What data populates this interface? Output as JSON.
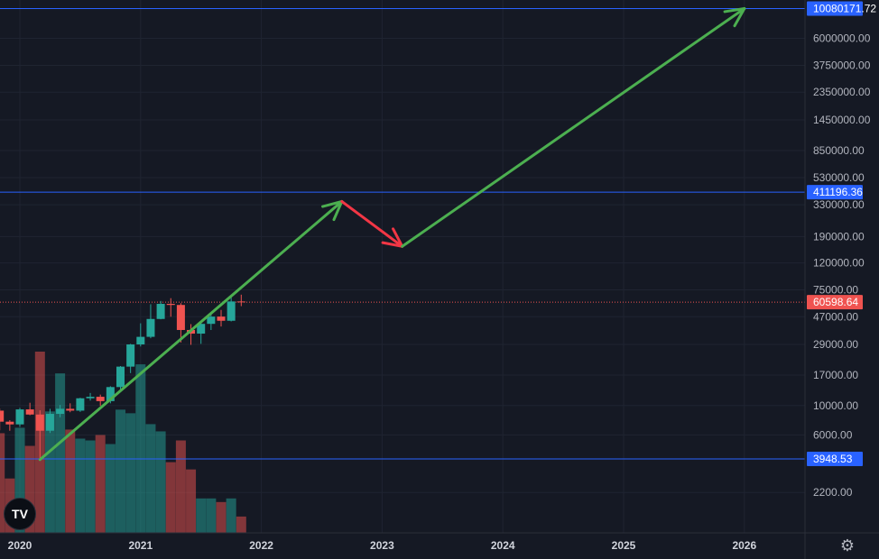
{
  "app": {
    "logo_text": "TV",
    "settings_icon": "gear-icon"
  },
  "colors": {
    "up": "#26a69a",
    "down": "#ef5350",
    "level_line": "#2962ff",
    "arrow_green": "#4caf50",
    "arrow_red": "#f23645",
    "current_price": "#ef5350"
  },
  "chart_data": {
    "type": "candlestick",
    "y_scale": "log",
    "ylim": [
      1600,
      13500000
    ],
    "x_ticks": [
      "2020",
      "2021",
      "2022",
      "2023",
      "2024",
      "2025",
      "2026"
    ],
    "y_ticks": [
      "2200.00",
      "6000.00",
      "10000.00",
      "17000.00",
      "29000.00",
      "47000.00",
      "75000.00",
      "120000.00",
      "190000.00",
      "330000.00",
      "530000.00",
      "850000.00",
      "1450000.00",
      "2350000.00",
      "3750000.00",
      "6000000.00"
    ],
    "levels": [
      {
        "label": "10080171.72",
        "value": 10080171.72
      },
      {
        "label": "411196.36",
        "value": 411196.36
      },
      {
        "label": "3948.53",
        "value": 3948.53
      }
    ],
    "current_price": {
      "label": "60598.64",
      "value": 60598.64
    },
    "candles": [
      {
        "date": "2019-11",
        "open": 9150,
        "high": 9500,
        "low": 6500,
        "close": 7550
      },
      {
        "date": "2019-12",
        "open": 7550,
        "high": 7750,
        "low": 6450,
        "close": 7200
      },
      {
        "date": "2020-01",
        "open": 7200,
        "high": 9600,
        "low": 6900,
        "close": 9350
      },
      {
        "date": "2020-02",
        "open": 9350,
        "high": 10500,
        "low": 8450,
        "close": 8550
      },
      {
        "date": "2020-03",
        "open": 8550,
        "high": 9200,
        "low": 3850,
        "close": 6450
      },
      {
        "date": "2020-04",
        "open": 6450,
        "high": 9450,
        "low": 6200,
        "close": 8650
      },
      {
        "date": "2020-05",
        "open": 8650,
        "high": 10100,
        "low": 8150,
        "close": 9450
      },
      {
        "date": "2020-06",
        "open": 9450,
        "high": 10400,
        "low": 8900,
        "close": 9150
      },
      {
        "date": "2020-07",
        "open": 9150,
        "high": 11450,
        "low": 8950,
        "close": 11350
      },
      {
        "date": "2020-08",
        "open": 11350,
        "high": 12450,
        "low": 10900,
        "close": 11650
      },
      {
        "date": "2020-09",
        "open": 11650,
        "high": 12100,
        "low": 9950,
        "close": 10800
      },
      {
        "date": "2020-10",
        "open": 10800,
        "high": 14000,
        "low": 10400,
        "close": 13800
      },
      {
        "date": "2020-11",
        "open": 13800,
        "high": 19900,
        "low": 13200,
        "close": 19700
      },
      {
        "date": "2020-12",
        "open": 19700,
        "high": 29300,
        "low": 17600,
        "close": 29000
      },
      {
        "date": "2021-01",
        "open": 29000,
        "high": 41900,
        "low": 28000,
        "close": 33100
      },
      {
        "date": "2021-02",
        "open": 33100,
        "high": 58400,
        "low": 32300,
        "close": 45200
      },
      {
        "date": "2021-03",
        "open": 45200,
        "high": 61800,
        "low": 44900,
        "close": 58800
      },
      {
        "date": "2021-04",
        "open": 58800,
        "high": 64900,
        "low": 47000,
        "close": 57700
      },
      {
        "date": "2021-05",
        "open": 57700,
        "high": 59500,
        "low": 30000,
        "close": 37300
      },
      {
        "date": "2021-06",
        "open": 37300,
        "high": 41300,
        "low": 28800,
        "close": 35000
      },
      {
        "date": "2021-07",
        "open": 35000,
        "high": 42400,
        "low": 29300,
        "close": 41500
      },
      {
        "date": "2021-08",
        "open": 41500,
        "high": 50500,
        "low": 37300,
        "close": 47100
      },
      {
        "date": "2021-09",
        "open": 47100,
        "high": 52900,
        "low": 39600,
        "close": 43800
      },
      {
        "date": "2021-10",
        "open": 43800,
        "high": 67000,
        "low": 43300,
        "close": 61300
      },
      {
        "date": "2021-11",
        "open": 61300,
        "high": 69000,
        "low": 56500,
        "close": 60600
      }
    ],
    "volume": [
      {
        "date": "2019-11",
        "value": 0.55,
        "dir": "down"
      },
      {
        "date": "2019-12",
        "value": 0.3,
        "dir": "down"
      },
      {
        "date": "2020-01",
        "value": 0.58,
        "dir": "up"
      },
      {
        "date": "2020-02",
        "value": 0.48,
        "dir": "down"
      },
      {
        "date": "2020-03",
        "value": 1.0,
        "dir": "down"
      },
      {
        "date": "2020-04",
        "value": 0.67,
        "dir": "up"
      },
      {
        "date": "2020-05",
        "value": 0.88,
        "dir": "up"
      },
      {
        "date": "2020-06",
        "value": 0.57,
        "dir": "down"
      },
      {
        "date": "2020-07",
        "value": 0.52,
        "dir": "up"
      },
      {
        "date": "2020-08",
        "value": 0.51,
        "dir": "up"
      },
      {
        "date": "2020-09",
        "value": 0.54,
        "dir": "down"
      },
      {
        "date": "2020-10",
        "value": 0.49,
        "dir": "up"
      },
      {
        "date": "2020-11",
        "value": 0.68,
        "dir": "up"
      },
      {
        "date": "2020-12",
        "value": 0.66,
        "dir": "up"
      },
      {
        "date": "2021-01",
        "value": 0.93,
        "dir": "up"
      },
      {
        "date": "2021-02",
        "value": 0.6,
        "dir": "up"
      },
      {
        "date": "2021-03",
        "value": 0.56,
        "dir": "up"
      },
      {
        "date": "2021-04",
        "value": 0.39,
        "dir": "down"
      },
      {
        "date": "2021-05",
        "value": 0.51,
        "dir": "down"
      },
      {
        "date": "2021-06",
        "value": 0.35,
        "dir": "down"
      },
      {
        "date": "2021-07",
        "value": 0.19,
        "dir": "up"
      },
      {
        "date": "2021-08",
        "value": 0.19,
        "dir": "up"
      },
      {
        "date": "2021-09",
        "value": 0.17,
        "dir": "down"
      },
      {
        "date": "2021-10",
        "value": 0.19,
        "dir": "up"
      },
      {
        "date": "2021-11",
        "value": 0.09,
        "dir": "down"
      }
    ],
    "arrows": [
      {
        "color": "green",
        "from": {
          "date": "2020-03",
          "value": 3900
        },
        "to": {
          "date": "2022-09",
          "value": 350000
        }
      },
      {
        "color": "red",
        "from": {
          "date": "2022-09",
          "value": 350000
        },
        "to": {
          "date": "2023-03",
          "value": 160000
        }
      },
      {
        "color": "green",
        "from": {
          "date": "2023-03",
          "value": 160000
        },
        "to": {
          "date": "2026-01",
          "value": 10080171.72
        }
      }
    ]
  }
}
